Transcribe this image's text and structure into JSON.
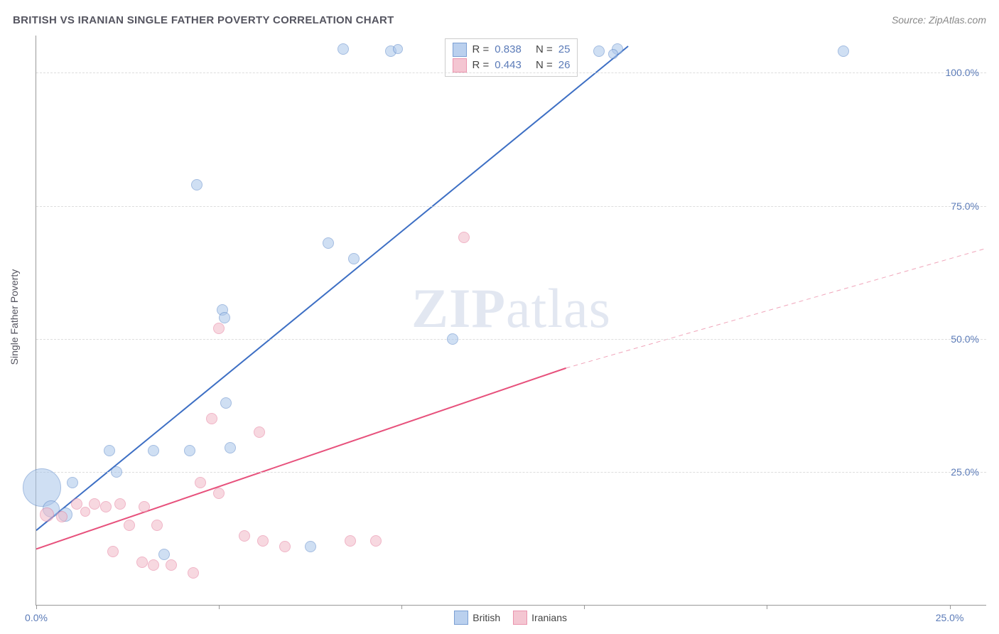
{
  "header": {
    "title": "BRITISH VS IRANIAN SINGLE FATHER POVERTY CORRELATION CHART",
    "source_prefix": "Source: ",
    "source": "ZipAtlas.com"
  },
  "ylabel": "Single Father Poverty",
  "watermark": {
    "bold": "ZIP",
    "rest": "atlas"
  },
  "chart": {
    "type": "scatter",
    "background_color": "#ffffff",
    "gridline_color": "#e0e0e0",
    "axis_color": "#999999",
    "xlim": [
      0,
      26
    ],
    "ylim": [
      0,
      107
    ],
    "xtick_positions": [
      0,
      5,
      10,
      15,
      20,
      25
    ],
    "xtick_labels_shown": {
      "0": "0.0%",
      "25": "25.0%"
    },
    "ytick_positions": [
      25,
      50,
      75,
      100
    ],
    "ytick_labels": [
      "25.0%",
      "50.0%",
      "75.0%",
      "100.0%"
    ],
    "series": [
      {
        "name": "British",
        "fill_color": "#a9c5ea",
        "stroke_color": "#5b88c9",
        "fill_opacity": 0.55,
        "trend": {
          "x1": 0,
          "y1": 14,
          "x2": 16.2,
          "y2": 105,
          "color": "#3d6fc4",
          "width": 2,
          "dash": "none"
        },
        "r_value": "0.838",
        "n_value": "25",
        "points": [
          {
            "x": 0.15,
            "y": 22,
            "r": 26
          },
          {
            "x": 0.4,
            "y": 18,
            "r": 11
          },
          {
            "x": 0.8,
            "y": 17,
            "r": 9
          },
          {
            "x": 1.0,
            "y": 23,
            "r": 7
          },
          {
            "x": 2.0,
            "y": 29,
            "r": 7
          },
          {
            "x": 2.2,
            "y": 25,
            "r": 7
          },
          {
            "x": 3.2,
            "y": 29,
            "r": 7
          },
          {
            "x": 3.5,
            "y": 9.5,
            "r": 7
          },
          {
            "x": 4.2,
            "y": 29,
            "r": 7
          },
          {
            "x": 7.5,
            "y": 11,
            "r": 7
          },
          {
            "x": 5.3,
            "y": 29.5,
            "r": 7
          },
          {
            "x": 5.2,
            "y": 38,
            "r": 7
          },
          {
            "x": 4.4,
            "y": 79,
            "r": 7
          },
          {
            "x": 5.1,
            "y": 55.5,
            "r": 7
          },
          {
            "x": 5.15,
            "y": 54,
            "r": 7
          },
          {
            "x": 8.0,
            "y": 68,
            "r": 7
          },
          {
            "x": 8.7,
            "y": 65,
            "r": 7
          },
          {
            "x": 8.4,
            "y": 104.5,
            "r": 7
          },
          {
            "x": 9.7,
            "y": 104,
            "r": 7
          },
          {
            "x": 9.9,
            "y": 104.5,
            "r": 6
          },
          {
            "x": 11.4,
            "y": 50,
            "r": 7
          },
          {
            "x": 15.4,
            "y": 104,
            "r": 7
          },
          {
            "x": 15.9,
            "y": 104.5,
            "r": 7
          },
          {
            "x": 15.8,
            "y": 103.5,
            "r": 6
          },
          {
            "x": 22.1,
            "y": 104,
            "r": 7
          }
        ]
      },
      {
        "name": "Iranians",
        "fill_color": "#f2b9c8",
        "stroke_color": "#e57a9a",
        "fill_opacity": 0.55,
        "trend_solid": {
          "x1": 0,
          "y1": 10.5,
          "x2": 14.5,
          "y2": 44.5,
          "color": "#e7517c",
          "width": 2
        },
        "trend_dash": {
          "x1": 14.5,
          "y1": 44.5,
          "x2": 26,
          "y2": 67,
          "color": "#f0a5ba",
          "width": 1
        },
        "r_value": "0.443",
        "n_value": "26",
        "points": [
          {
            "x": 0.3,
            "y": 17,
            "r": 9
          },
          {
            "x": 0.7,
            "y": 16.5,
            "r": 7
          },
          {
            "x": 1.1,
            "y": 19,
            "r": 7
          },
          {
            "x": 1.35,
            "y": 17.5,
            "r": 6
          },
          {
            "x": 1.6,
            "y": 19,
            "r": 7
          },
          {
            "x": 1.9,
            "y": 18.5,
            "r": 7
          },
          {
            "x": 2.1,
            "y": 10,
            "r": 7
          },
          {
            "x": 2.3,
            "y": 19,
            "r": 7
          },
          {
            "x": 2.55,
            "y": 15,
            "r": 7
          },
          {
            "x": 2.9,
            "y": 8,
            "r": 7
          },
          {
            "x": 2.95,
            "y": 18.5,
            "r": 7
          },
          {
            "x": 3.2,
            "y": 7.5,
            "r": 7
          },
          {
            "x": 3.3,
            "y": 15,
            "r": 7
          },
          {
            "x": 3.7,
            "y": 7.5,
            "r": 7
          },
          {
            "x": 4.5,
            "y": 23,
            "r": 7
          },
          {
            "x": 4.3,
            "y": 6,
            "r": 7
          },
          {
            "x": 4.8,
            "y": 35,
            "r": 7
          },
          {
            "x": 5.0,
            "y": 52,
            "r": 7
          },
          {
            "x": 5.0,
            "y": 21,
            "r": 7
          },
          {
            "x": 5.7,
            "y": 13,
            "r": 7
          },
          {
            "x": 6.1,
            "y": 32.5,
            "r": 7
          },
          {
            "x": 6.2,
            "y": 12,
            "r": 7
          },
          {
            "x": 6.8,
            "y": 11,
            "r": 7
          },
          {
            "x": 8.6,
            "y": 12,
            "r": 7
          },
          {
            "x": 9.3,
            "y": 12,
            "r": 7
          },
          {
            "x": 11.7,
            "y": 69,
            "r": 7
          }
        ]
      }
    ]
  },
  "legend_top": {
    "r_label": "R =",
    "n_label": "N ="
  },
  "legend_bottom": {
    "items": [
      "British",
      "Iranians"
    ]
  }
}
